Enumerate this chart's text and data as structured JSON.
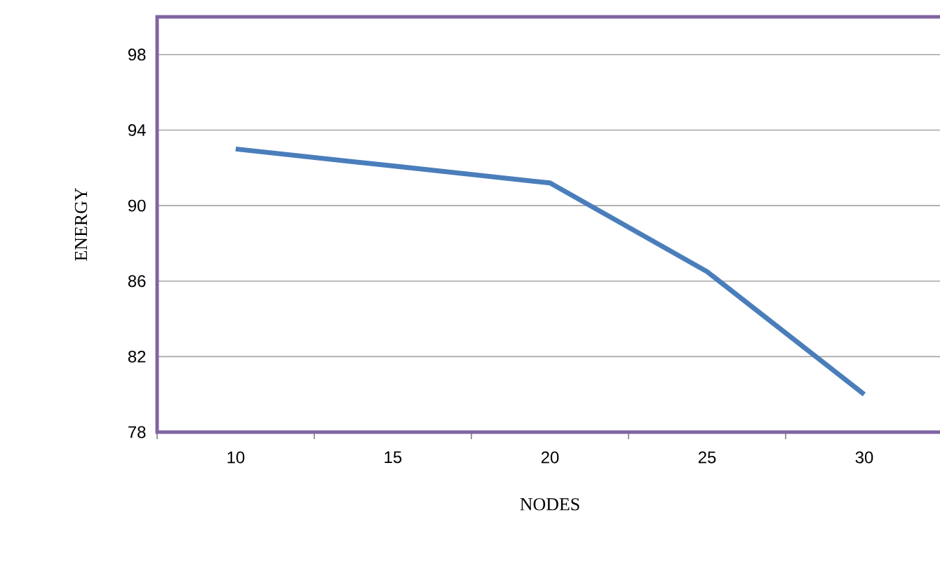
{
  "chart_data": {
    "type": "line",
    "xlabel": "NODES",
    "ylabel": "ENERGY",
    "categories": [
      "10",
      "15",
      "20",
      "25",
      "30"
    ],
    "values": [
      93,
      92.1,
      91.2,
      86.5,
      80
    ],
    "color": "#4a7ebb",
    "ylim": [
      78,
      100
    ],
    "yticks": [
      78,
      82,
      86,
      90,
      94,
      98
    ],
    "grid": "y",
    "marker": "none",
    "line_style": "solid"
  }
}
